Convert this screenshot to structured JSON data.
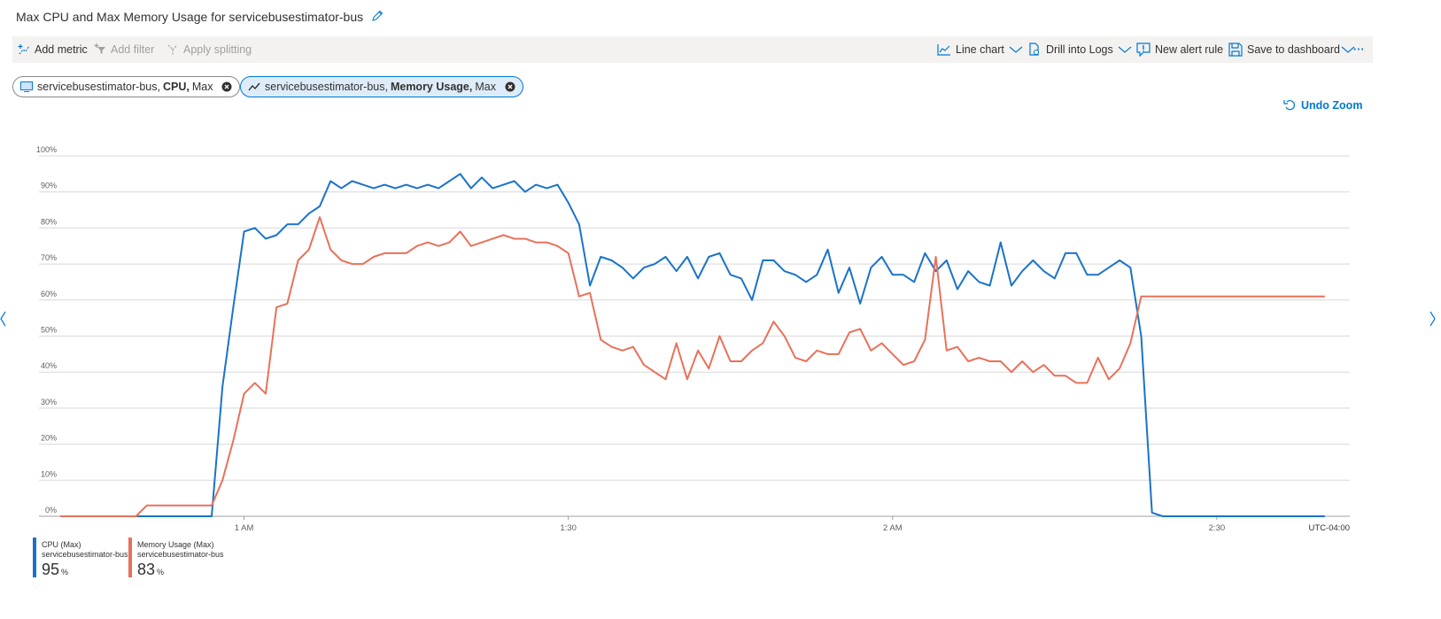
{
  "header": {
    "title": "Max CPU and Max Memory Usage for servicebusestimator-bus"
  },
  "toolbar": {
    "left": [
      "Add metric",
      "Add filter",
      "Apply splitting"
    ],
    "right": [
      "Line chart",
      "Drill into Logs",
      "New alert rule",
      "Save to dashboard"
    ]
  },
  "pills": [
    {
      "resource": "servicebusestimator-bus,",
      "metric": "CPU,",
      "aggregation": "Max"
    },
    {
      "resource": "servicebusestimator-bus,",
      "metric": "Memory Usage,",
      "aggregation": "Max"
    }
  ],
  "undo_zoom": "Undo Zoom",
  "chart_data": {
    "type": "line",
    "grid": true,
    "x": [
      43,
      44,
      45,
      46,
      47,
      48,
      49,
      50,
      51,
      52,
      53,
      54,
      55,
      56,
      57,
      58,
      59,
      60,
      61,
      62,
      63,
      64,
      65,
      66,
      67,
      68,
      69,
      70,
      71,
      72,
      73,
      74,
      75,
      76,
      77,
      78,
      79,
      80,
      81,
      82,
      83,
      84,
      85,
      86,
      87,
      88,
      89,
      90,
      91,
      92,
      93,
      94,
      95,
      96,
      97,
      98,
      99,
      100,
      101,
      102,
      103,
      104,
      105,
      106,
      107,
      108,
      109,
      110,
      111,
      112,
      113,
      114,
      115,
      116,
      117,
      118,
      119,
      120,
      121,
      122,
      123,
      124,
      125,
      126,
      127,
      128,
      129,
      130,
      131,
      132,
      133,
      134,
      135,
      136,
      137,
      138,
      139,
      140,
      141,
      142,
      143,
      144,
      145,
      146,
      147,
      148,
      149,
      150,
      151,
      152,
      153,
      154,
      155,
      156,
      157,
      158,
      159,
      160
    ],
    "xlim": [
      42.5,
      162.3
    ],
    "xticks": [
      {
        "value": 60,
        "label": "1 AM"
      },
      {
        "value": 90,
        "label": "1:30"
      },
      {
        "value": 120,
        "label": "2 AM"
      },
      {
        "value": 150,
        "label": "2:30"
      }
    ],
    "timezone": "UTC-04:00",
    "ylim": [
      0,
      100
    ],
    "yticks": [
      {
        "value": 0,
        "label": "0%"
      },
      {
        "value": 10,
        "label": "10%"
      },
      {
        "value": 20,
        "label": "20%"
      },
      {
        "value": 30,
        "label": "30%"
      },
      {
        "value": 40,
        "label": "40%"
      },
      {
        "value": 50,
        "label": "50%"
      },
      {
        "value": 60,
        "label": "60%"
      },
      {
        "value": 70,
        "label": "70%"
      },
      {
        "value": 80,
        "label": "80%"
      },
      {
        "value": 90,
        "label": "90%"
      },
      {
        "value": 100,
        "label": "100%"
      }
    ],
    "series": [
      {
        "name": "CPU (Max)",
        "resource": "servicebusestimator-bus",
        "summary": 95,
        "unit": "%",
        "color": "#1a73c8",
        "values": [
          0,
          0,
          0,
          0,
          0,
          0,
          0,
          0,
          0,
          0,
          0,
          0,
          0,
          0,
          0,
          36,
          58,
          79,
          80,
          77,
          78,
          81,
          81,
          84,
          86,
          93,
          91,
          93,
          92,
          91,
          92,
          91,
          92,
          91,
          92,
          91,
          93,
          95,
          91,
          94,
          91,
          92,
          93,
          90,
          92,
          91,
          92,
          87,
          81,
          64,
          72,
          71,
          69,
          66,
          69,
          70,
          72,
          68,
          72,
          66,
          72,
          73,
          67,
          66,
          60,
          71,
          71,
          68,
          67,
          65,
          67,
          74,
          62,
          69,
          59,
          69,
          72,
          67,
          67,
          65,
          73,
          68,
          71,
          63,
          68,
          65,
          64,
          76,
          64,
          68,
          71,
          68,
          66,
          73,
          73,
          67,
          67,
          69,
          71,
          69,
          50,
          1,
          0,
          0,
          0,
          0,
          0,
          0,
          0,
          0,
          0,
          0,
          0,
          0,
          0,
          0,
          0,
          0
        ]
      },
      {
        "name": "Memory Usage (Max)",
        "resource": "servicebusestimator-bus",
        "summary": 83,
        "unit": "%",
        "color": "#e8715a",
        "values": [
          0,
          0,
          0,
          0,
          0,
          0,
          0,
          0,
          3,
          3,
          3,
          3,
          3,
          3,
          3,
          10,
          21,
          34,
          37,
          34,
          58,
          59,
          71,
          74,
          83,
          74,
          71,
          70,
          70,
          72,
          73,
          73,
          73,
          75,
          76,
          75,
          76,
          79,
          75,
          76,
          77,
          78,
          77,
          77,
          76,
          76,
          75,
          73,
          61,
          62,
          49,
          47,
          46,
          47,
          42,
          40,
          38,
          48,
          38,
          46,
          41,
          50,
          43,
          43,
          46,
          48,
          54,
          50,
          44,
          43,
          46,
          45,
          45,
          51,
          52,
          46,
          48,
          45,
          42,
          43,
          49,
          72,
          46,
          47,
          43,
          44,
          43,
          43,
          40,
          43,
          40,
          42,
          39,
          39,
          37,
          37,
          44,
          38,
          41,
          48,
          61,
          61,
          61,
          61,
          61,
          61,
          61,
          61,
          61,
          61,
          61,
          61,
          61,
          61,
          61,
          61,
          61,
          61
        ]
      }
    ]
  }
}
